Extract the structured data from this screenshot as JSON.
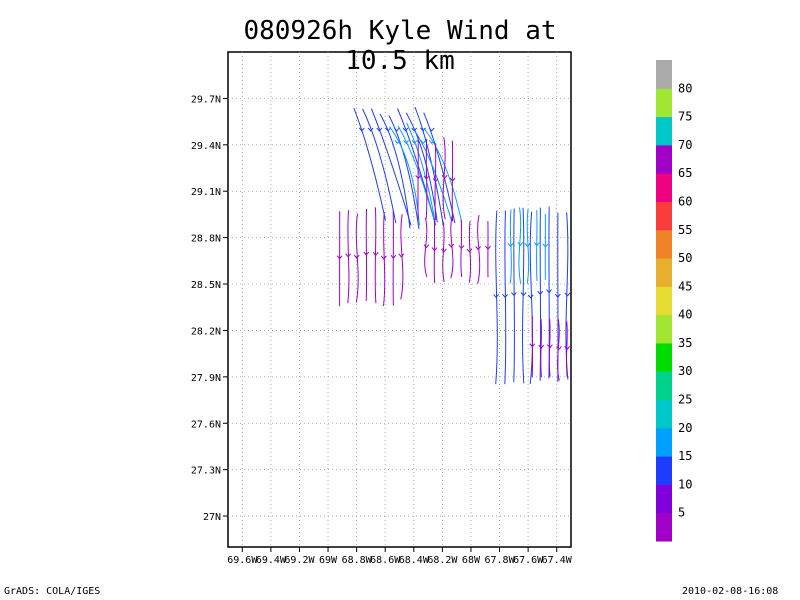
{
  "title": "080926h Kyle Wind at 10.5 km",
  "footer": {
    "left": "GrADS: COLA/IGES",
    "right": "2010-02-08-16:08"
  },
  "chart_data": {
    "type": "streamline",
    "x_ticks": [
      "69.6W",
      "69.4W",
      "69.2W",
      "69W",
      "68.8W",
      "68.6W",
      "68.4W",
      "68.2W",
      "68W",
      "67.8W",
      "67.6W",
      "67.4W"
    ],
    "y_ticks": [
      "29.7N",
      "29.4N",
      "29.1N",
      "28.8N",
      "28.5N",
      "28.2N",
      "27.9N",
      "27.6N",
      "27.3N",
      "27N"
    ],
    "xlim": [
      -69.7,
      -67.3
    ],
    "ylim": [
      26.8,
      30.0
    ],
    "grid": true,
    "colorbar": {
      "levels": [
        "5",
        "10",
        "15",
        "20",
        "25",
        "30",
        "35",
        "40",
        "45",
        "50",
        "55",
        "60",
        "65",
        "70",
        "75",
        "80"
      ],
      "colors": [
        "#a000c8",
        "#8200dc",
        "#1e3cff",
        "#00a0ff",
        "#00c8c8",
        "#00d28c",
        "#00dc00",
        "#a0e632",
        "#e6dc32",
        "#e6af2d",
        "#f08228",
        "#fa3c3c",
        "#f00082",
        "#a000c8",
        "#00c8c8",
        "#a0e632",
        "#aaaaaa"
      ]
    },
    "streamline_groups": [
      {
        "name": "west-purple",
        "color": "#a000c8",
        "x_range": [
          -68.95,
          -68.45
        ],
        "y_range": [
          28.35,
          29.0
        ],
        "dir": "south"
      },
      {
        "name": "north-blue",
        "color": "#1e3cff",
        "x_range": [
          -68.85,
          -68.3
        ],
        "y_range": [
          28.85,
          29.65
        ],
        "dir": "southeast"
      },
      {
        "name": "north-cyan",
        "color": "#00a0ff",
        "x_range": [
          -68.6,
          -68.3
        ],
        "y_range": [
          28.85,
          29.55
        ],
        "dir": "southeast"
      },
      {
        "name": "northeast-purple",
        "color": "#a000c8",
        "x_range": [
          -68.4,
          -68.1
        ],
        "y_range": [
          28.9,
          29.45
        ],
        "dir": "south"
      },
      {
        "name": "middle-purple",
        "color": "#a000c8",
        "x_range": [
          -68.35,
          -67.85
        ],
        "y_range": [
          28.5,
          28.95
        ],
        "dir": "south"
      },
      {
        "name": "east-blue",
        "color": "#1e3cff",
        "x_range": [
          -67.85,
          -67.3
        ],
        "y_range": [
          27.85,
          29.0
        ],
        "dir": "south"
      },
      {
        "name": "east-cyan",
        "color": "#00a0ff",
        "x_range": [
          -67.75,
          -67.45
        ],
        "y_range": [
          28.5,
          29.0
        ],
        "dir": "south"
      },
      {
        "name": "southeast-purple",
        "color": "#a000c8",
        "x_range": [
          -67.6,
          -67.3
        ],
        "y_range": [
          27.85,
          28.3
        ],
        "dir": "south"
      }
    ]
  }
}
